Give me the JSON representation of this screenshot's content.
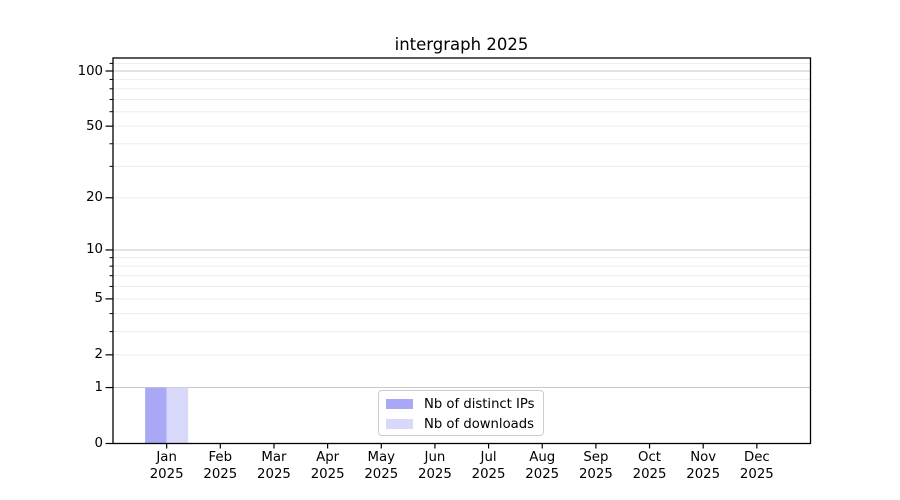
{
  "title": "intergraph 2025",
  "chart_data": {
    "type": "bar",
    "title": "intergraph 2025",
    "categories": [
      "Jan 2025",
      "Feb 2025",
      "Mar 2025",
      "Apr 2025",
      "May 2025",
      "Jun 2025",
      "Jul 2025",
      "Aug 2025",
      "Sep 2025",
      "Oct 2025",
      "Nov 2025",
      "Dec 2025"
    ],
    "x_tick_months": [
      "Jan",
      "Feb",
      "Mar",
      "Apr",
      "May",
      "Jun",
      "Jul",
      "Aug",
      "Sep",
      "Oct",
      "Nov",
      "Dec"
    ],
    "x_tick_year": "2025",
    "series": [
      {
        "name": "Nb of distinct IPs",
        "color": "#a8a8f4",
        "values": [
          1,
          0,
          0,
          0,
          0,
          0,
          0,
          0,
          0,
          0,
          0,
          0
        ]
      },
      {
        "name": "Nb of downloads",
        "color": "#d8d8fa",
        "values": [
          1,
          0,
          0,
          0,
          0,
          0,
          0,
          0,
          0,
          0,
          0,
          0
        ]
      }
    ],
    "yscale": "log1p",
    "ylim": [
      0,
      118
    ],
    "y_tick_labels": [
      0,
      1,
      2,
      5,
      10,
      20,
      50,
      100
    ],
    "y_major_gridlines": [
      1,
      10,
      100
    ],
    "y_minor_gridlines": [
      2,
      3,
      4,
      5,
      6,
      7,
      8,
      9,
      20,
      30,
      40,
      50,
      60,
      70,
      80,
      90,
      110
    ],
    "grid": "horizontal only, major darker + minor faint",
    "legend_position": "lower center inside plot",
    "colors": {
      "major_grid": "#c8c8c8",
      "minor_grid": "#ededed",
      "axis": "#000000",
      "background": "#ffffff"
    }
  },
  "legend": {
    "items": [
      {
        "label": "Nb of distinct IPs",
        "color": "#a8a8f4"
      },
      {
        "label": "Nb of downloads",
        "color": "#d8d8fa"
      }
    ]
  }
}
